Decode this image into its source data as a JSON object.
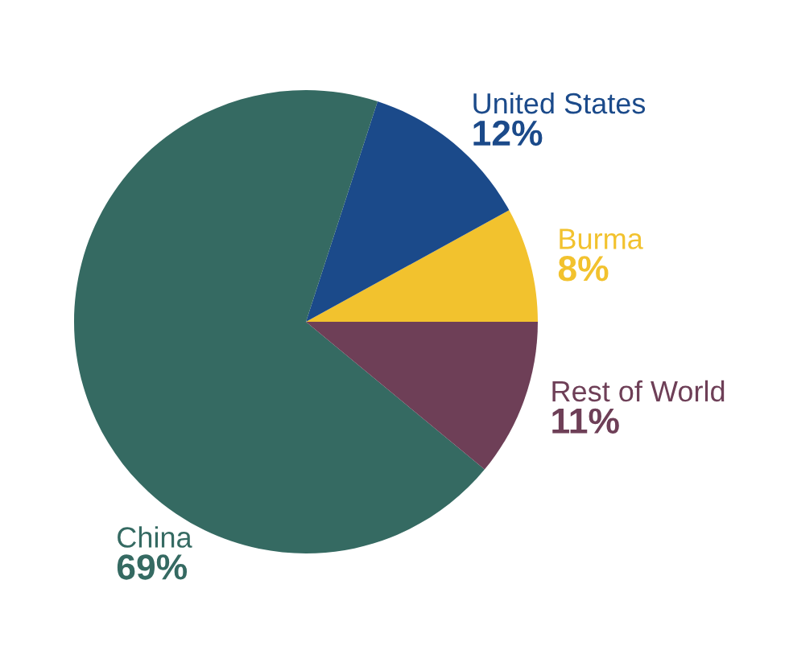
{
  "chart_data": {
    "type": "pie",
    "categories": [
      "Burma",
      "United States",
      "China",
      "Rest of World"
    ],
    "values": [
      8,
      12,
      69,
      11
    ],
    "value_labels": [
      "8%",
      "12%",
      "69%",
      "11%"
    ],
    "colors": [
      "#f2c22e",
      "#1b4a8a",
      "#356a62",
      "#6e3f57"
    ]
  }
}
